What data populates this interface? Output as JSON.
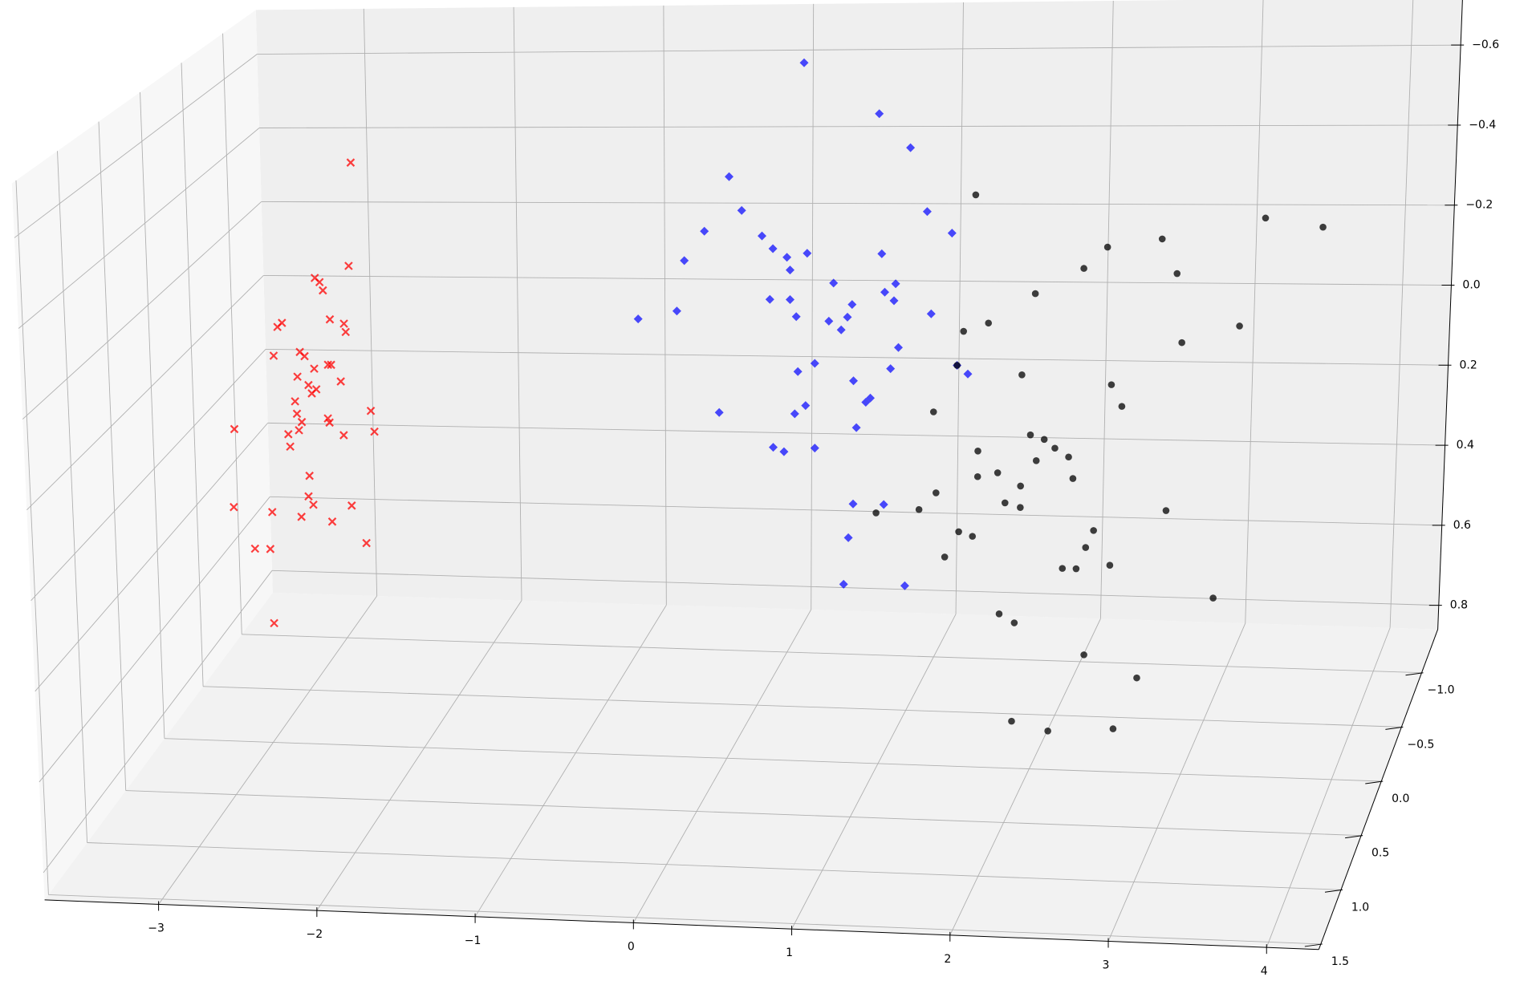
{
  "chart_data": {
    "type": "scatter3d",
    "grid": true,
    "xlim": [
      -3.72,
      4.33
    ],
    "ylim": [
      -1.4,
      1.55
    ],
    "zlim": [
      0.86,
      -0.72
    ],
    "xticks": [
      {
        "value": -3,
        "label": "−3"
      },
      {
        "value": -2,
        "label": "−2"
      },
      {
        "value": -1,
        "label": "−1"
      },
      0,
      1,
      2,
      3,
      4
    ],
    "yticks": [
      {
        "value": -1.0,
        "label": "−1.0"
      },
      {
        "value": -0.5,
        "label": "−0.5"
      },
      {
        "value": 0.0,
        "label": "0.0"
      },
      {
        "value": 0.5,
        "label": "0.5"
      },
      {
        "value": 1.0,
        "label": "1.0"
      },
      {
        "value": 1.5,
        "label": "1.5"
      }
    ],
    "zticks": [
      {
        "value": -0.6,
        "label": "−0.6"
      },
      {
        "value": -0.4,
        "label": "−0.4"
      },
      {
        "value": -0.2,
        "label": "−0.2"
      },
      {
        "value": 0.0,
        "label": "0.0"
      },
      {
        "value": 0.2,
        "label": "0.2"
      },
      {
        "value": 0.4,
        "label": "0.4"
      },
      {
        "value": 0.6,
        "label": "0.6"
      },
      {
        "value": 0.8,
        "label": "0.8"
      }
    ],
    "series": [
      {
        "color": "red",
        "marker": "x",
        "x": [
          -2.39,
          -2.42,
          -2.64,
          -2.61,
          -2.59,
          -2.86,
          -2.89,
          -2.55,
          -2.46,
          -2.45,
          -2.92,
          -2.75,
          -2.72,
          -2.57,
          -2.55,
          -2.66,
          -2.77,
          -2.49,
          -2.7,
          -2.65,
          -2.68,
          -2.79,
          -2.3,
          -2.78,
          -2.58,
          -2.57,
          -2.75,
          -2.77,
          -2.28,
          -2.48,
          -3.19,
          -2.84,
          -2.83,
          -2.71,
          -2.72,
          -2.69,
          -2.44,
          -3.21,
          -2.96,
          -2.77,
          -2.57,
          -2.35,
          -3.08,
          -2.98,
          -2.97
        ],
        "y": [
          0,
          0,
          0,
          0,
          0,
          0,
          0,
          0,
          0,
          0,
          0,
          0,
          0,
          0,
          0,
          0,
          0,
          0,
          0,
          0,
          0,
          0,
          0,
          0,
          0,
          0,
          0,
          0,
          0,
          0,
          0,
          0,
          0,
          0,
          0,
          0,
          0,
          0,
          0,
          0,
          0,
          0,
          0,
          0,
          0
        ],
        "z": [
          -0.55,
          -0.3,
          -0.27,
          -0.26,
          -0.24,
          -0.16,
          -0.15,
          -0.17,
          -0.16,
          -0.14,
          -0.08,
          -0.09,
          -0.08,
          -0.06,
          -0.06,
          -0.05,
          -0.03,
          -0.02,
          -0.01,
          0.0,
          0.01,
          0.03,
          0.05,
          0.06,
          0.07,
          0.08,
          0.08,
          0.1,
          0.1,
          0.11,
          0.1,
          0.11,
          0.14,
          0.21,
          0.26,
          0.28,
          0.28,
          0.29,
          0.3,
          0.31,
          0.32,
          0.37,
          0.39,
          0.39,
          0.57
        ]
      },
      {
        "color": "blue",
        "marker": "diamond",
        "x": [
          0.51,
          0.99,
          1.19,
          0.03,
          1.3,
          0.11,
          1.46,
          -0.13,
          0.24,
          0.31,
          0.53,
          1.01,
          0.4,
          -0.26,
          0.42,
          0.7,
          1.1,
          1.03,
          0.29,
          0.42,
          0.82,
          1.09,
          -0.56,
          -0.31,
          1.33,
          0.46,
          0.67,
          0.79,
          0.75,
          1.12,
          0.58,
          1.5,
          1.07,
          1.57,
          0.47,
          0.83,
          0.94,
          0.91,
          0.52,
          -0.04,
          0.45,
          0.85,
          0.31,
          0.58,
          0.38,
          0.83,
          1.03,
          0.8,
          0.77,
          1.17
        ],
        "y": [
          0,
          0,
          0,
          0,
          0,
          0,
          0,
          0,
          0,
          0,
          0,
          0,
          0,
          0,
          0,
          0,
          0,
          0,
          0,
          0,
          0,
          0,
          0,
          0,
          0,
          0,
          0,
          0,
          0,
          0,
          0,
          0,
          0,
          0,
          0,
          0,
          0,
          0,
          0,
          0,
          0,
          0,
          0,
          0,
          0,
          0,
          0,
          0,
          0,
          0
        ],
        "z": [
          -0.79,
          -0.67,
          -0.59,
          -0.52,
          -0.44,
          -0.44,
          -0.39,
          -0.39,
          -0.38,
          -0.35,
          -0.34,
          -0.34,
          -0.33,
          -0.32,
          -0.3,
          -0.27,
          -0.27,
          -0.25,
          -0.23,
          -0.23,
          -0.22,
          -0.23,
          -0.18,
          -0.2,
          -0.2,
          -0.19,
          -0.18,
          -0.19,
          -0.16,
          -0.12,
          -0.08,
          -0.08,
          -0.07,
          -0.06,
          -0.06,
          -0.04,
          0.0,
          0.01,
          0.02,
          0.04,
          0.04,
          0.07,
          0.12,
          0.12,
          0.13,
          0.25,
          0.25,
          0.33,
          0.44,
          0.44
        ]
      },
      {
        "color": "black",
        "marker": "circle",
        "x": [
          1.61,
          3.47,
          3.84,
          2.46,
          2.81,
          2.31,
          2.91,
          2.0,
          3.32,
          1.7,
          1.54,
          2.95,
          1.5,
          1.92,
          2.5,
          2.57,
          1.35,
          1.98,
          2.07,
          2.14,
          2.23,
          1.64,
          2.02,
          1.77,
          1.64,
          1.92,
          2.26,
          1.37,
          1.82,
          1.92,
          2.87,
          1.26,
          0.98,
          2.4,
          1.52,
          1.61,
          2.35,
          1.43,
          2.2,
          2.29,
          2.51,
          3.19,
          1.79,
          1.89,
          2.35,
          2.7,
          1.88,
          2.12,
          2.55
        ],
        "y": [
          0,
          0,
          0,
          0,
          0,
          0,
          0,
          0,
          0,
          0,
          0,
          0,
          0,
          0,
          0,
          0,
          0,
          0,
          0,
          0,
          0,
          0,
          0,
          0,
          0,
          0,
          0,
          0,
          0,
          0,
          0,
          0,
          0,
          0,
          0,
          0,
          0,
          0,
          0,
          0,
          0,
          0,
          0,
          0,
          0,
          0,
          0,
          0,
          0
        ],
        "z": [
          -0.48,
          -0.43,
          -0.41,
          -0.36,
          -0.38,
          -0.31,
          -0.3,
          -0.25,
          -0.18,
          -0.18,
          -0.16,
          -0.14,
          -0.08,
          -0.06,
          -0.04,
          0.01,
          0.03,
          0.08,
          0.09,
          0.11,
          0.13,
          0.12,
          0.14,
          0.17,
          0.18,
          0.2,
          0.18,
          0.22,
          0.24,
          0.25,
          0.25,
          0.26,
          0.27,
          0.3,
          0.31,
          0.32,
          0.34,
          0.37,
          0.39,
          0.39,
          0.38,
          0.45,
          0.5,
          0.52,
          0.59,
          0.64,
          0.75,
          0.77,
          0.76
        ]
      }
    ]
  }
}
